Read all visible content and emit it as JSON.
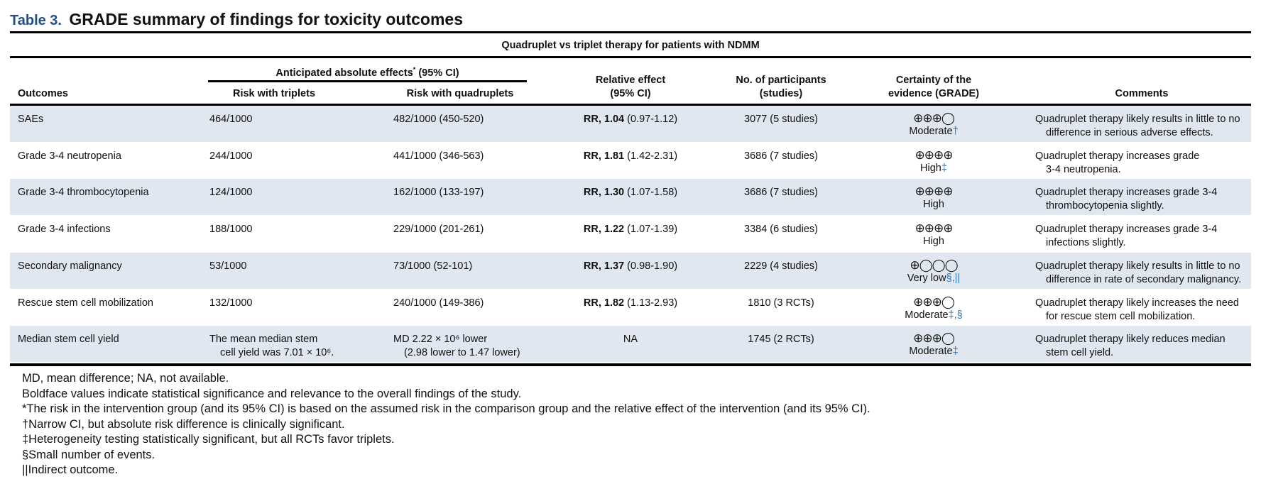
{
  "table": {
    "number": "Table 3.",
    "title": "GRADE summary of findings for toxicity outcomes",
    "subtitle": "Quadruplet vs triplet therapy for patients with NDMM"
  },
  "headers": {
    "outcomes": "Outcomes",
    "anticipated": "Anticipated absolute effects",
    "anticipated_mark": "*",
    "anticipated_ci": " (95% CI)",
    "triplets": "Risk with triplets",
    "quadruplets": "Risk with quadruplets",
    "relative_1": "Relative effect",
    "relative_2": "(95% CI)",
    "participants_1": "No. of participants",
    "participants_2": "(studies)",
    "certainty_1": "Certainty of the",
    "certainty_2": "evidence (GRADE)",
    "comments": "Comments"
  },
  "rows": [
    {
      "outcome": "SAEs",
      "triplets": [
        "464/1000"
      ],
      "quad": [
        "482/1000 (450-520)"
      ],
      "rr_label": "RR, 1.04",
      "rr_ci": " (0.97-1.12)",
      "participants": "3077 (5 studies)",
      "cert_symbols": "⊕⊕⊕◯",
      "cert_label": "Moderate",
      "cert_note": "†",
      "comment": [
        "Quadruplet therapy likely results in little to no",
        "difference in serious adverse effects."
      ]
    },
    {
      "outcome": "Grade 3-4 neutropenia",
      "triplets": [
        "244/1000"
      ],
      "quad": [
        "441/1000 (346-563)"
      ],
      "rr_label": "RR, 1.81",
      "rr_ci": " (1.42-2.31)",
      "participants": "3686 (7 studies)",
      "cert_symbols": "⊕⊕⊕⊕",
      "cert_label": "High",
      "cert_note": "‡",
      "comment": [
        "Quadruplet therapy increases grade",
        "3-4 neutropenia."
      ]
    },
    {
      "outcome": "Grade 3-4 thrombocytopenia",
      "triplets": [
        "124/1000"
      ],
      "quad": [
        "162/1000 (133-197)"
      ],
      "rr_label": "RR, 1.30",
      "rr_ci": " (1.07-1.58)",
      "participants": "3686 (7 studies)",
      "cert_symbols": "⊕⊕⊕⊕",
      "cert_label": "High",
      "cert_note": "",
      "comment": [
        "Quadruplet therapy increases grade 3-4",
        "thrombocytopenia slightly."
      ]
    },
    {
      "outcome": "Grade 3-4 infections",
      "triplets": [
        "188/1000"
      ],
      "quad": [
        "229/1000 (201-261)"
      ],
      "rr_label": "RR, 1.22",
      "rr_ci": " (1.07-1.39)",
      "participants": "3384 (6 studies)",
      "cert_symbols": "⊕⊕⊕⊕",
      "cert_label": "High",
      "cert_note": "",
      "comment": [
        "Quadruplet therapy increases grade 3-4",
        "infections slightly."
      ]
    },
    {
      "outcome": "Secondary malignancy",
      "triplets": [
        "53/1000"
      ],
      "quad": [
        "73/1000 (52-101)"
      ],
      "rr_label": "RR, 1.37",
      "rr_ci": " (0.98-1.90)",
      "participants": "2229 (4 studies)",
      "cert_symbols": "⊕◯◯◯",
      "cert_label": "Very low",
      "cert_note": "§,||",
      "comment": [
        "Quadruplet therapy likely results in little to no",
        "difference in rate of secondary malignancy."
      ]
    },
    {
      "outcome": "Rescue stem cell mobilization",
      "triplets": [
        "132/1000"
      ],
      "quad": [
        "240/1000 (149-386)"
      ],
      "rr_label": "RR, 1.82",
      "rr_ci": " (1.13-2.93)",
      "participants": "1810 (3 RCTs)",
      "cert_symbols": "⊕⊕⊕◯",
      "cert_label": "Moderate",
      "cert_note": "‡,§",
      "comment": [
        "Quadruplet therapy likely increases the need",
        "for rescue stem cell mobilization."
      ]
    },
    {
      "outcome": "Median stem cell yield",
      "triplets": [
        "The mean median stem",
        "cell yield was 7.01 × 10⁶."
      ],
      "quad": [
        "MD 2.22 × 10⁶ lower",
        "(2.98 lower to 1.47 lower)"
      ],
      "rr_label": "",
      "rr_ci": "NA",
      "participants": "1745 (2 RCTs)",
      "cert_symbols": "⊕⊕⊕◯",
      "cert_label": "Moderate",
      "cert_note": "‡",
      "comment": [
        "Quadruplet therapy likely reduces median",
        "stem cell yield."
      ]
    }
  ],
  "footnotes": [
    "MD, mean difference; NA, not available.",
    "Boldface values indicate statistical significance and relevance to the overall findings of the study.",
    "*The risk in the intervention group (and its 95% CI) is based on the assumed risk in the comparison group and the relative effect of the intervention (and its 95% CI).",
    "†Narrow CI, but absolute risk difference is clinically significant.",
    "‡Heterogeneity testing statistically significant, but all RCTs favor triplets.",
    "§Small number of events.",
    "||Indirect outcome."
  ],
  "colors": {
    "row_shade": "#e1e7f0",
    "table_number": "#1f4e8c",
    "footnote_mark": "#2e75b6"
  }
}
